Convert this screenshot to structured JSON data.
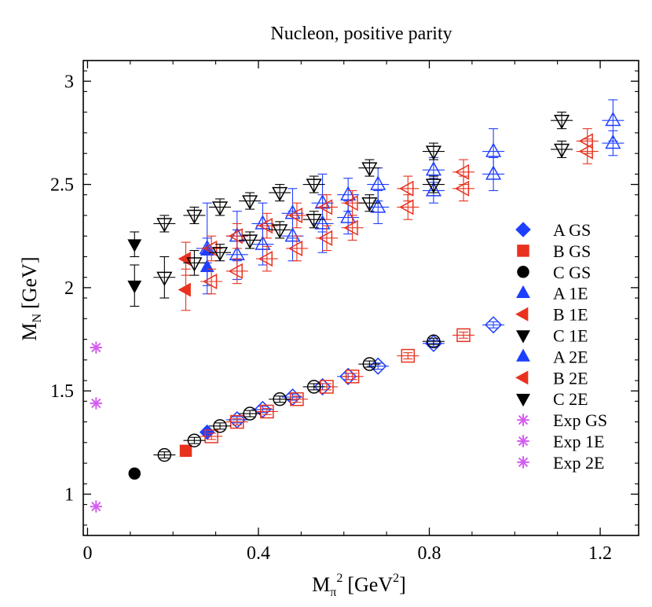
{
  "chart_data": {
    "type": "scatter",
    "title": "Nucleon, positive parity",
    "xlabel": {
      "main": "M",
      "sub": "π",
      "sup": "2",
      "unit": "[GeV",
      "unit_sup": "2",
      "close": "]"
    },
    "ylabel": {
      "main": "M",
      "sub": "N",
      "unit": "[GeV]"
    },
    "xlim": [
      -0.01,
      1.29
    ],
    "ylim": [
      0.8,
      3.1
    ],
    "xticks": [
      0,
      0.4,
      0.8,
      1.2
    ],
    "xtick_labels": [
      "0",
      "0.4",
      "0.8",
      "1.2"
    ],
    "yticks": [
      1,
      1.5,
      2,
      2.5,
      3
    ],
    "ytick_labels": [
      "1",
      "1.5",
      "2",
      "2.5",
      "3"
    ],
    "legend_position": "right",
    "colors": {
      "A": "#1f3fff",
      "B": "#e8321e",
      "C": "#000000",
      "Exp": "#d45cf0"
    },
    "series": [
      {
        "name": "A GS",
        "marker": "diamond",
        "color": "#1f3fff",
        "fill": true,
        "ensemble": "A",
        "state": "GS",
        "points": [
          [
            0.28,
            1.3,
            0.012
          ]
        ]
      },
      {
        "name": "B GS",
        "marker": "square",
        "color": "#e8321e",
        "fill": true,
        "ensemble": "B",
        "state": "GS",
        "points": [
          [
            0.23,
            1.21,
            0.012
          ]
        ]
      },
      {
        "name": "C GS",
        "marker": "circle",
        "color": "#000000",
        "fill": true,
        "ensemble": "C",
        "state": "GS",
        "points": [
          [
            0.11,
            1.1,
            0.012
          ]
        ]
      },
      {
        "name": "A 1E",
        "marker": "up",
        "color": "#1f3fff",
        "fill": true,
        "ensemble": "A",
        "state": "1E",
        "points": [
          [
            0.28,
            2.1,
            0.09
          ]
        ]
      },
      {
        "name": "B 1E",
        "marker": "left",
        "color": "#e8321e",
        "fill": true,
        "ensemble": "B",
        "state": "1E",
        "points": [
          [
            0.23,
            1.99,
            0.1
          ]
        ]
      },
      {
        "name": "C 1E",
        "marker": "down",
        "color": "#000000",
        "fill": true,
        "ensemble": "C",
        "state": "1E",
        "points": [
          [
            0.11,
            2.01,
            0.1
          ]
        ]
      },
      {
        "name": "A 2E",
        "marker": "up",
        "color": "#1f3fff",
        "fill": true,
        "ensemble": "A",
        "state": "2E",
        "points": [
          [
            0.28,
            2.18,
            0.06
          ]
        ]
      },
      {
        "name": "B 2E",
        "marker": "left",
        "color": "#e8321e",
        "fill": true,
        "ensemble": "B",
        "state": "2E",
        "points": [
          [
            0.23,
            2.14,
            0.08
          ]
        ]
      },
      {
        "name": "C 2E",
        "marker": "down",
        "color": "#000000",
        "fill": true,
        "ensemble": "C",
        "state": "2E",
        "points": [
          [
            0.11,
            2.21,
            0.06
          ]
        ]
      },
      {
        "name": "Exp GS",
        "marker": "asterisk",
        "color": "#d45cf0",
        "fill": true,
        "ensemble": "Exp",
        "state": "GS",
        "points": [
          [
            0.02,
            0.94,
            0
          ]
        ]
      },
      {
        "name": "Exp 1E",
        "marker": "asterisk",
        "color": "#d45cf0",
        "fill": true,
        "ensemble": "Exp",
        "state": "1E",
        "points": [
          [
            0.02,
            1.44,
            0
          ]
        ]
      },
      {
        "name": "Exp 2E",
        "marker": "asterisk",
        "color": "#d45cf0",
        "fill": true,
        "ensemble": "Exp",
        "state": "2E",
        "points": [
          [
            0.02,
            1.71,
            0
          ]
        ]
      },
      {
        "name": "A GS (variants)",
        "marker": "diamond",
        "color": "#1f3fff",
        "fill": false,
        "in_legend": false,
        "points": [
          [
            0.35,
            1.36,
            0.015
          ],
          [
            0.41,
            1.41,
            0.015
          ],
          [
            0.48,
            1.47,
            0.015
          ],
          [
            0.55,
            1.52,
            0.015
          ],
          [
            0.61,
            1.57,
            0.015
          ],
          [
            0.68,
            1.62,
            0.015
          ],
          [
            0.81,
            1.73,
            0.015
          ],
          [
            0.95,
            1.82,
            0.015
          ]
        ]
      },
      {
        "name": "B GS (variants)",
        "marker": "square",
        "color": "#e8321e",
        "fill": false,
        "in_legend": false,
        "points": [
          [
            0.29,
            1.28,
            0.015
          ],
          [
            0.35,
            1.35,
            0.015
          ],
          [
            0.42,
            1.4,
            0.015
          ],
          [
            0.49,
            1.46,
            0.015
          ],
          [
            0.56,
            1.52,
            0.015
          ],
          [
            0.62,
            1.57,
            0.015
          ],
          [
            0.75,
            1.67,
            0.015
          ],
          [
            0.88,
            1.77,
            0.015
          ]
        ]
      },
      {
        "name": "C GS (variants)",
        "marker": "circle",
        "color": "#000000",
        "fill": false,
        "in_legend": false,
        "points": [
          [
            0.18,
            1.19,
            0.015
          ],
          [
            0.25,
            1.26,
            0.015
          ],
          [
            0.31,
            1.33,
            0.015
          ],
          [
            0.38,
            1.39,
            0.015
          ],
          [
            0.45,
            1.46,
            0.015
          ],
          [
            0.53,
            1.52,
            0.015
          ],
          [
            0.66,
            1.63,
            0.015
          ],
          [
            0.81,
            1.74,
            0.015
          ]
        ]
      },
      {
        "name": "A excited (variants)",
        "marker": "up",
        "color": "#1f3fff",
        "fill": false,
        "in_legend": false,
        "points": [
          [
            0.28,
            2.19,
            0.22
          ],
          [
            0.35,
            2.16,
            0.12
          ],
          [
            0.35,
            2.25,
            0.12
          ],
          [
            0.41,
            2.21,
            0.1
          ],
          [
            0.41,
            2.31,
            0.1
          ],
          [
            0.48,
            2.25,
            0.12
          ],
          [
            0.48,
            2.36,
            0.12
          ],
          [
            0.55,
            2.31,
            0.14
          ],
          [
            0.55,
            2.41,
            0.14
          ],
          [
            0.61,
            2.34,
            0.08
          ],
          [
            0.61,
            2.45,
            0.08
          ],
          [
            0.68,
            2.39,
            0.08
          ],
          [
            0.68,
            2.5,
            0.08
          ],
          [
            0.81,
            2.47,
            0.06
          ],
          [
            0.81,
            2.57,
            0.06
          ],
          [
            0.95,
            2.55,
            0.08
          ],
          [
            0.95,
            2.66,
            0.11
          ],
          [
            1.23,
            2.7,
            0.06
          ],
          [
            1.23,
            2.81,
            0.1
          ]
        ]
      },
      {
        "name": "B excited (variants)",
        "marker": "left",
        "color": "#e8321e",
        "fill": false,
        "in_legend": false,
        "points": [
          [
            0.29,
            2.03,
            0.06
          ],
          [
            0.29,
            2.19,
            0.06
          ],
          [
            0.35,
            2.08,
            0.06
          ],
          [
            0.35,
            2.25,
            0.06
          ],
          [
            0.42,
            2.14,
            0.06
          ],
          [
            0.42,
            2.3,
            0.06
          ],
          [
            0.49,
            2.19,
            0.06
          ],
          [
            0.49,
            2.35,
            0.06
          ],
          [
            0.56,
            2.24,
            0.06
          ],
          [
            0.56,
            2.39,
            0.06
          ],
          [
            0.62,
            2.29,
            0.06
          ],
          [
            0.62,
            2.41,
            0.06
          ],
          [
            0.75,
            2.39,
            0.06
          ],
          [
            0.75,
            2.48,
            0.06
          ],
          [
            0.88,
            2.48,
            0.06
          ],
          [
            0.88,
            2.56,
            0.06
          ],
          [
            1.17,
            2.66,
            0.06
          ],
          [
            1.17,
            2.71,
            0.06
          ]
        ]
      },
      {
        "name": "C excited (variants)",
        "marker": "down",
        "color": "#000000",
        "fill": false,
        "in_legend": false,
        "points": [
          [
            0.18,
            2.05,
            0.1
          ],
          [
            0.18,
            2.31,
            0.04
          ],
          [
            0.25,
            2.12,
            0.06
          ],
          [
            0.25,
            2.35,
            0.04
          ],
          [
            0.31,
            2.17,
            0.04
          ],
          [
            0.31,
            2.39,
            0.04
          ],
          [
            0.38,
            2.23,
            0.04
          ],
          [
            0.38,
            2.42,
            0.04
          ],
          [
            0.45,
            2.28,
            0.04
          ],
          [
            0.45,
            2.46,
            0.04
          ],
          [
            0.53,
            2.33,
            0.04
          ],
          [
            0.53,
            2.5,
            0.04
          ],
          [
            0.66,
            2.41,
            0.04
          ],
          [
            0.66,
            2.58,
            0.04
          ],
          [
            0.81,
            2.5,
            0.04
          ],
          [
            0.81,
            2.66,
            0.04
          ],
          [
            1.11,
            2.67,
            0.04
          ],
          [
            1.11,
            2.81,
            0.04
          ]
        ]
      }
    ]
  }
}
